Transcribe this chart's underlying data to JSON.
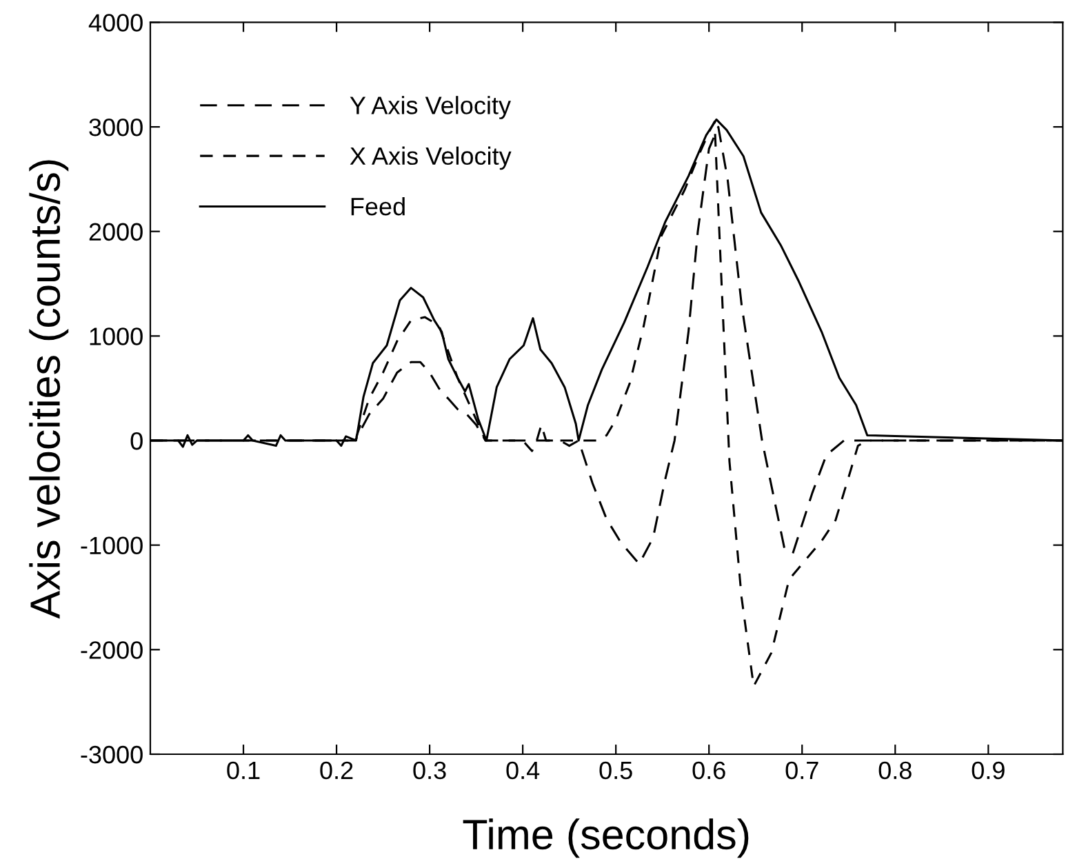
{
  "chart_data": {
    "type": "line",
    "xlabel": "Time (seconds)",
    "ylabel": "Axis velocities (counts/s)",
    "xlim": [
      0,
      0.98
    ],
    "xticks": [
      0.1,
      0.2,
      0.3,
      0.4,
      0.5,
      0.6,
      0.7,
      0.8,
      0.9
    ],
    "ylim": [
      -3000,
      4000
    ],
    "yticks": [
      -3000,
      -2000,
      -1000,
      0,
      1000,
      2000,
      3000,
      4000
    ],
    "grid": false,
    "legend": "top left",
    "marker": "none",
    "series": [
      {
        "name": "Y Axis Velocity",
        "color": "#000000",
        "line_style": "dashed",
        "x": [
          0,
          0.22,
          0.235,
          0.25,
          0.265,
          0.28,
          0.29,
          0.3,
          0.31,
          0.32,
          0.33,
          0.34,
          0.35,
          0.36,
          0.44,
          0.45,
          0.46,
          0.475,
          0.49,
          0.505,
          0.525,
          0.54,
          0.553,
          0.563,
          0.578,
          0.588,
          0.6,
          0.61,
          0.62,
          0.635,
          0.657,
          0.681,
          0.69,
          0.711,
          0.726,
          0.745,
          0.98
        ],
        "values": [
          0,
          0,
          250,
          400,
          650,
          750,
          750,
          650,
          500,
          400,
          300,
          250,
          150,
          0,
          0,
          -50,
          0,
          -410,
          -750,
          -970,
          -1180,
          -930,
          -370,
          0,
          1040,
          2000,
          2790,
          3000,
          2500,
          1300,
          0,
          -1030,
          -1080,
          -500,
          -140,
          0,
          0
        ]
      },
      {
        "name": "X Axis Velocity",
        "color": "#000000",
        "line_style": "dashed",
        "x": [
          0,
          0.22,
          0.235,
          0.25,
          0.265,
          0.28,
          0.295,
          0.31,
          0.32,
          0.33,
          0.34,
          0.35,
          0.36,
          0.4,
          0.41,
          0.415,
          0.42,
          0.425,
          0.48,
          0.49,
          0.5,
          0.515,
          0.53,
          0.549,
          0.574,
          0.59,
          0.6,
          0.606,
          0.615,
          0.622,
          0.635,
          0.648,
          0.667,
          0.686,
          0.701,
          0.721,
          0.736,
          0.751,
          0.76,
          0.77,
          0.98
        ],
        "values": [
          0,
          0,
          400,
          650,
          950,
          1150,
          1180,
          1100,
          850,
          600,
          400,
          200,
          0,
          0,
          -100,
          0,
          150,
          0,
          0,
          50,
          200,
          550,
          1100,
          1960,
          2400,
          2750,
          2950,
          3050,
          1200,
          -200,
          -1500,
          -2350,
          -2030,
          -1330,
          -1170,
          -960,
          -760,
          -320,
          -50,
          0,
          0
        ]
      },
      {
        "name": "Feed",
        "color": "#000000",
        "line_style": "solid",
        "x": [
          0,
          0.03,
          0.035,
          0.04,
          0.045,
          0.05,
          0.1,
          0.105,
          0.11,
          0.135,
          0.14,
          0.145,
          0.2,
          0.205,
          0.21,
          0.221,
          0.229,
          0.239,
          0.254,
          0.268,
          0.28,
          0.293,
          0.305,
          0.313,
          0.32,
          0.33,
          0.338,
          0.342,
          0.352,
          0.361,
          0.372,
          0.386,
          0.401,
          0.411,
          0.419,
          0.431,
          0.445,
          0.457,
          0.46,
          0.47,
          0.485,
          0.509,
          0.534,
          0.553,
          0.578,
          0.597,
          0.608,
          0.619,
          0.637,
          0.656,
          0.677,
          0.696,
          0.721,
          0.74,
          0.758,
          0.77,
          0.98
        ],
        "values": [
          0,
          0,
          -60,
          50,
          -40,
          0,
          0,
          50,
          0,
          -50,
          50,
          0,
          0,
          -50,
          40,
          0,
          420,
          740,
          910,
          1340,
          1460,
          1370,
          1150,
          1040,
          780,
          600,
          470,
          540,
          210,
          0,
          510,
          780,
          910,
          1170,
          870,
          740,
          510,
          160,
          0,
          340,
          680,
          1130,
          1660,
          2090,
          2530,
          2920,
          3070,
          2970,
          2720,
          2180,
          1870,
          1530,
          1040,
          600,
          340,
          50,
          0
        ]
      }
    ]
  }
}
